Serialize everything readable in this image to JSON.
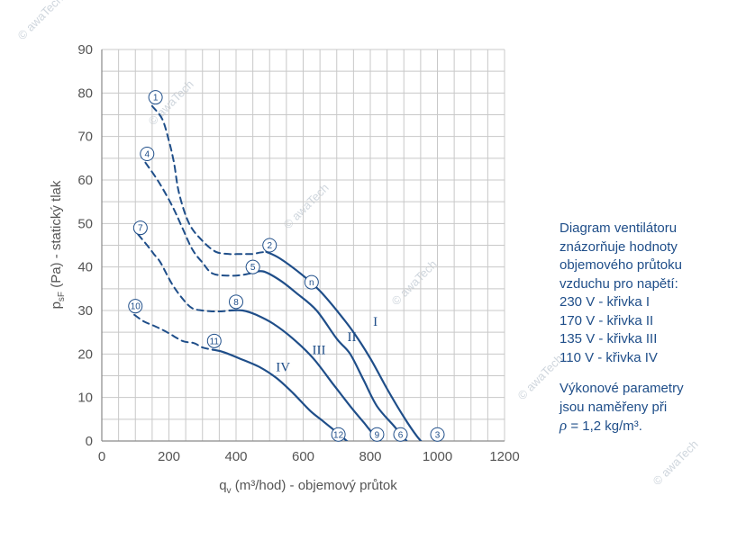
{
  "chart_data": {
    "type": "line",
    "ylabel_main": "p",
    "ylabel_sub": "sF",
    "ylabel_rest": " (Pa) - statický tlak",
    "xlabel_main": "q",
    "xlabel_sub": "v",
    "xlabel_rest": " (m³/hod) - objemový průtok",
    "xlim": [
      0,
      1200
    ],
    "ylim": [
      0,
      90
    ],
    "xticks": [
      0,
      200,
      400,
      600,
      800,
      1000,
      1200
    ],
    "yticks": [
      0,
      10,
      20,
      30,
      40,
      50,
      60,
      70,
      80,
      90
    ],
    "grid": true,
    "series": [
      {
        "name": "I",
        "label_at": [
          815,
          26.5
        ],
        "dashed": [
          [
            150,
            77
          ],
          [
            180,
            74
          ],
          [
            200,
            69
          ],
          [
            215,
            64
          ],
          [
            230,
            57
          ],
          [
            260,
            50
          ],
          [
            300,
            46
          ],
          [
            340,
            43.5
          ],
          [
            380,
            43
          ],
          [
            410,
            43
          ],
          [
            430,
            43
          ],
          [
            450,
            43
          ],
          [
            470,
            43.3
          ],
          [
            490,
            43.5
          ]
        ],
        "solid": [
          [
            490,
            43.5
          ],
          [
            530,
            42
          ],
          [
            600,
            38
          ],
          [
            650,
            34.5
          ],
          [
            700,
            30
          ],
          [
            750,
            25
          ],
          [
            800,
            19
          ],
          [
            850,
            12
          ],
          [
            900,
            5.5
          ],
          [
            940,
            1
          ],
          [
            975,
            -2
          ]
        ]
      },
      {
        "name": "II",
        "label_at": [
          745,
          23
        ],
        "dashed": [
          [
            130,
            64
          ],
          [
            170,
            59.5
          ],
          [
            210,
            54
          ],
          [
            240,
            49
          ],
          [
            270,
            44
          ],
          [
            300,
            41
          ],
          [
            330,
            38.5
          ],
          [
            380,
            38
          ],
          [
            420,
            38.2
          ],
          [
            440,
            38.5
          ]
        ],
        "solid": [
          [
            440,
            38.5
          ],
          [
            480,
            39
          ],
          [
            530,
            37
          ],
          [
            580,
            34
          ],
          [
            640,
            30
          ],
          [
            700,
            23.5
          ],
          [
            740,
            20
          ],
          [
            780,
            14
          ],
          [
            820,
            8
          ],
          [
            870,
            3.5
          ],
          [
            905,
            0.3
          ],
          [
            930,
            -2
          ]
        ]
      },
      {
        "name": "III",
        "label_at": [
          647,
          20
        ],
        "dashed": [
          [
            108,
            47.5
          ],
          [
            135,
            45
          ],
          [
            155,
            43
          ],
          [
            175,
            41
          ],
          [
            210,
            36
          ],
          [
            245,
            32.3
          ],
          [
            270,
            30.5
          ],
          [
            300,
            30
          ],
          [
            330,
            29.8
          ],
          [
            355,
            29.8
          ],
          [
            380,
            30
          ]
        ],
        "solid": [
          [
            380,
            30
          ],
          [
            420,
            30
          ],
          [
            460,
            29
          ],
          [
            510,
            27
          ],
          [
            570,
            23.5
          ],
          [
            630,
            19
          ],
          [
            690,
            13
          ],
          [
            740,
            8
          ],
          [
            780,
            4.3
          ],
          [
            810,
            1.5
          ],
          [
            830,
            0
          ],
          [
            845,
            -1.5
          ]
        ]
      },
      {
        "name": "IV",
        "label_at": [
          540,
          16
        ],
        "dashed": [
          [
            97,
            29
          ],
          [
            125,
            27.5
          ],
          [
            155,
            26.5
          ],
          [
            195,
            25
          ],
          [
            240,
            23
          ],
          [
            275,
            22.5
          ],
          [
            300,
            21.5
          ],
          [
            330,
            21
          ]
        ],
        "solid": [
          [
            330,
            21
          ],
          [
            360,
            20.5
          ],
          [
            410,
            19
          ],
          [
            470,
            17
          ],
          [
            520,
            14.5
          ],
          [
            570,
            11
          ],
          [
            620,
            7
          ],
          [
            660,
            4.5
          ],
          [
            700,
            2
          ],
          [
            730,
            0
          ],
          [
            760,
            -2
          ]
        ]
      }
    ],
    "markers": [
      {
        "label": "1",
        "x": 160,
        "y": 79
      },
      {
        "label": "2",
        "x": 500,
        "y": 45
      },
      {
        "label": "3",
        "x": 1000,
        "y": 1.5
      },
      {
        "label": "4",
        "x": 135,
        "y": 66
      },
      {
        "label": "5",
        "x": 450,
        "y": 40
      },
      {
        "label": "6",
        "x": 890,
        "y": 1.5
      },
      {
        "label": "7",
        "x": 115,
        "y": 49
      },
      {
        "label": "8",
        "x": 400,
        "y": 32
      },
      {
        "label": "9",
        "x": 820,
        "y": 1.5
      },
      {
        "label": "10",
        "x": 100,
        "y": 31
      },
      {
        "label": "11",
        "x": 335,
        "y": 23
      },
      {
        "label": "12",
        "x": 705,
        "y": 1.5
      },
      {
        "label": "n",
        "x": 625,
        "y": 36.5
      }
    ]
  },
  "note": {
    "lines": [
      "Diagram ventilátoru",
      "znázorňuje hodnoty",
      "objemového průtoku",
      "vzduchu pro napětí:",
      "230 V - křivka I",
      "170 V - křivka II",
      "135 V - křivka III",
      "110 V - křivka IV"
    ],
    "perf_line1": "Výkonové parametry",
    "perf_line2": "jsou naměřeny při",
    "rho_symbol": "ρ",
    "rho_value": " = 1,2 kg/m³."
  },
  "watermark": "© awaTech",
  "colors": {
    "curve": "#1f4e89",
    "grid": "#c8c8c8",
    "axis_text": "#555555"
  }
}
